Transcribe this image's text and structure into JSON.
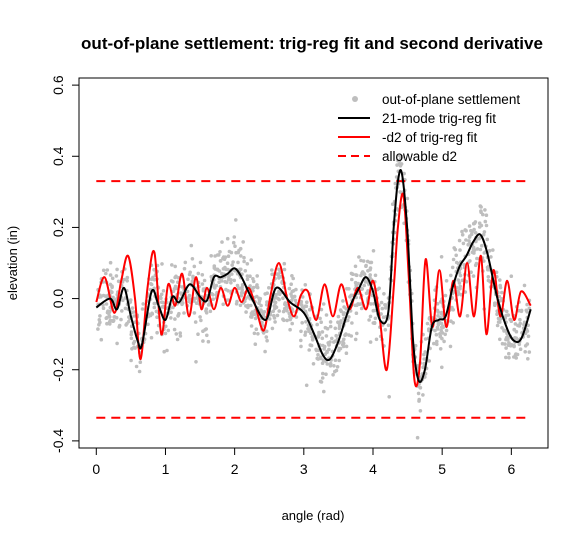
{
  "chart_data": {
    "type": "scatter",
    "title": "out-of-plane settlement: trig-reg fit and second derivative",
    "xlabel": "angle (rad)",
    "ylabel": "elevation (in)",
    "xlim": [
      -0.25,
      6.53
    ],
    "ylim": [
      -0.42,
      0.62
    ],
    "xticks": [
      0,
      1,
      2,
      3,
      4,
      5,
      6
    ],
    "yticks": [
      -0.4,
      -0.2,
      0.0,
      0.2,
      0.4,
      0.6
    ],
    "xtick_labels": [
      "0",
      "1",
      "2",
      "3",
      "4",
      "5",
      "6"
    ],
    "ytick_labels": [
      "-0.4",
      "-0.2",
      "0.0",
      "0.2",
      "0.4",
      "0.6"
    ],
    "grid": false,
    "legend_position": "top-right",
    "legend": [
      {
        "label": "out-of-plane settlement",
        "style": "points",
        "color": "#bebebe"
      },
      {
        "label": "21-mode trig-reg fit",
        "style": "solid",
        "color": "#000000"
      },
      {
        "label": "-d2 of trig-reg fit",
        "style": "solid",
        "color": "#ff0000"
      },
      {
        "label": "allowable d2",
        "style": "dashed",
        "color": "#ff0000"
      }
    ],
    "series": [
      {
        "name": "21-mode trig-reg fit",
        "color": "#000000",
        "x": [
          0.0,
          0.2,
          0.3,
          0.4,
          0.5,
          0.6,
          0.66,
          0.8,
          0.9,
          1.0,
          1.1,
          1.2,
          1.35,
          1.5,
          1.6,
          1.7,
          1.8,
          1.9,
          2.0,
          2.1,
          2.25,
          2.45,
          2.6,
          2.8,
          3.0,
          3.15,
          3.28,
          3.38,
          3.5,
          3.65,
          3.8,
          3.9,
          4.0,
          4.1,
          4.22,
          4.3,
          4.36,
          4.42,
          4.5,
          4.58,
          4.66,
          4.75,
          4.85,
          4.95,
          5.05,
          5.15,
          5.25,
          5.35,
          5.45,
          5.55,
          5.65,
          5.8,
          5.95,
          6.05,
          6.15,
          6.28
        ],
        "y": [
          -0.025,
          0.0,
          -0.03,
          0.03,
          -0.05,
          -0.12,
          -0.13,
          0.02,
          -0.02,
          -0.06,
          0.005,
          -0.01,
          0.04,
          0.005,
          -0.005,
          0.06,
          0.06,
          0.07,
          0.085,
          0.06,
          0.0,
          -0.06,
          0.03,
          -0.01,
          -0.04,
          -0.1,
          -0.16,
          -0.17,
          -0.12,
          -0.03,
          0.03,
          0.06,
          0.02,
          -0.06,
          -0.04,
          0.2,
          0.33,
          0.35,
          0.18,
          -0.12,
          -0.23,
          -0.2,
          -0.08,
          -0.06,
          -0.05,
          0.03,
          0.09,
          0.12,
          0.16,
          0.18,
          0.13,
          0.0,
          -0.09,
          -0.12,
          -0.11,
          -0.03
        ]
      },
      {
        "name": "-d2 of trig-reg fit",
        "color": "#ff0000",
        "x": [
          0.0,
          0.12,
          0.26,
          0.36,
          0.46,
          0.56,
          0.64,
          0.74,
          0.84,
          0.94,
          1.04,
          1.14,
          1.24,
          1.34,
          1.44,
          1.52,
          1.6,
          1.7,
          1.8,
          1.9,
          2.0,
          2.1,
          2.2,
          2.3,
          2.42,
          2.52,
          2.64,
          2.76,
          2.86,
          2.96,
          3.06,
          3.18,
          3.3,
          3.42,
          3.54,
          3.66,
          3.78,
          3.9,
          4.0,
          4.1,
          4.2,
          4.3,
          4.36,
          4.44,
          4.52,
          4.6,
          4.68,
          4.76,
          4.86,
          4.96,
          5.06,
          5.16,
          5.26,
          5.36,
          5.46,
          5.56,
          5.64,
          5.74,
          5.84,
          5.94,
          6.04,
          6.14,
          6.28
        ],
        "y": [
          -0.01,
          0.06,
          -0.04,
          0.05,
          0.12,
          0.0,
          -0.17,
          0.03,
          0.13,
          -0.1,
          0.04,
          -0.02,
          0.07,
          -0.05,
          0.06,
          -0.03,
          0.03,
          -0.03,
          0.03,
          -0.02,
          0.03,
          -0.01,
          0.03,
          -0.02,
          -0.09,
          0.01,
          0.1,
          0.0,
          -0.05,
          0.01,
          0.02,
          -0.06,
          0.04,
          -0.05,
          0.04,
          -0.03,
          0.03,
          -0.03,
          0.05,
          -0.06,
          -0.2,
          0.03,
          0.2,
          0.29,
          0.05,
          -0.23,
          -0.18,
          0.11,
          -0.08,
          0.08,
          -0.08,
          0.05,
          -0.05,
          0.1,
          -0.05,
          0.12,
          -0.1,
          0.08,
          -0.05,
          0.05,
          -0.06,
          0.02,
          -0.02
        ]
      },
      {
        "name": "allowable d2",
        "color": "#ff0000",
        "dashed": true,
        "levels": [
          0.33,
          -0.335
        ]
      },
      {
        "name": "out-of-plane settlement",
        "color": "#bebebe",
        "description_points": "dense noisy observations around the black fit, roughly +/-0.15 in scatter"
      }
    ]
  }
}
